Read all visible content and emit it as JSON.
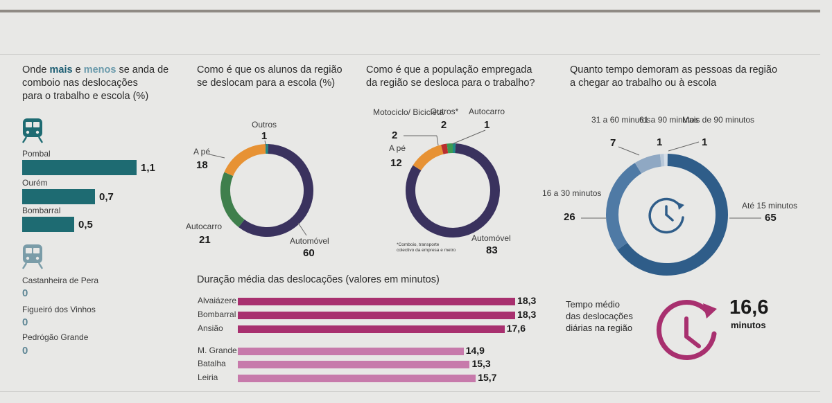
{
  "panel_rail": {
    "title_parts": [
      "Onde ",
      "mais",
      " e ",
      "menos",
      " se anda de",
      "comboio nas deslocações",
      "para o trabalho e escola (%)"
    ],
    "most": [
      {
        "label": "Pombal",
        "value": "1,1"
      },
      {
        "label": "Ourém",
        "value": "0,7"
      },
      {
        "label": "Bombarral",
        "value": "0,5"
      }
    ],
    "least": [
      {
        "label": "Castanheira de Pera",
        "value": "0"
      },
      {
        "label": "Figueiró dos Vinhos",
        "value": "0"
      },
      {
        "label": "Pedrógão Grande",
        "value": "0"
      }
    ],
    "icons": [
      "train-icon",
      "train-icon"
    ]
  },
  "panel_students": {
    "title_lines": [
      "Como é que os alunos da região",
      "se deslocam para a escola (%)"
    ]
  },
  "panel_workers": {
    "title_lines": [
      "Como é que a população empregada",
      "da região se desloca para o trabalho?"
    ],
    "footnote_lines": [
      "*Comboio, transporte",
      "colectivo da empresa e metro"
    ]
  },
  "panel_time": {
    "title_lines": [
      "Quanto tempo demoram as pessoas da região",
      "a chegar ao trabalho ou à escola"
    ]
  },
  "panel_avg": {
    "label_lines": [
      "Tempo médio",
      "das deslocações",
      "diárias na região"
    ],
    "value": "16,6",
    "unit": "minutos"
  },
  "panel_duration": {
    "title": "Duração média das deslocações (valores em minutos)"
  },
  "chart_data": [
    {
      "type": "bar",
      "orientation": "horizontal",
      "title": "Onde mais e menos se anda de comboio nas deslocações para o trabalho e escola (%)",
      "categories": [
        "Pombal",
        "Ourém",
        "Bombarral",
        "Castanheira de Pera",
        "Figueiró dos Vinhos",
        "Pedrógão Grande"
      ],
      "values": [
        1.1,
        0.7,
        0.5,
        0,
        0,
        0
      ],
      "value_labels": [
        "1,1",
        "0,7",
        "0,5",
        "0",
        "0",
        "0"
      ],
      "colors": {
        "bar": "#1e6b72",
        "zero": "#5e8695"
      }
    },
    {
      "type": "pie",
      "donut": true,
      "title": "Como é que os alunos da região se deslocam para a escola (%)",
      "slices": [
        {
          "label": "Outros",
          "value": 1,
          "color": "#1f8a84"
        },
        {
          "label": "Automóvel",
          "value": 60,
          "color": "#3a325e"
        },
        {
          "label": "Autocarro",
          "value": 21,
          "color": "#3f7f4c"
        },
        {
          "label": "A pé",
          "value": 18,
          "color": "#e79234"
        }
      ]
    },
    {
      "type": "pie",
      "donut": true,
      "title": "Como é que a população empregada da região se desloca para o trabalho?",
      "slices": [
        {
          "label": "Autocarro",
          "value": 1,
          "color": "#1f8a84"
        },
        {
          "label": "Automóvel",
          "value": 83,
          "color": "#3a325e"
        },
        {
          "label": "A pé",
          "value": 12,
          "color": "#e79234"
        },
        {
          "label": "Motociclo/ Bicicleta",
          "value": 2,
          "color": "#b92e2e"
        },
        {
          "label": "Outros*",
          "value": 2,
          "color": "#3c9a52"
        }
      ]
    },
    {
      "type": "pie",
      "donut": true,
      "title": "Quanto tempo demoram as pessoas da região a chegar ao trabalho ou à escola",
      "slices": [
        {
          "label": "Mais de 90 minutos",
          "value": 1,
          "color": "#d3dde7"
        },
        {
          "label": "Até 15 minutos",
          "value": 65,
          "color": "#2f5d89"
        },
        {
          "label": "16 a 30 minutos",
          "value": 26,
          "color": "#4f7aa5"
        },
        {
          "label": "31 a 60 minutos",
          "value": 7,
          "color": "#8fa8c3"
        },
        {
          "label": "61 a 90 minutos",
          "value": 1,
          "color": "#b7c7d8"
        }
      ],
      "icon": "clock-icon"
    },
    {
      "type": "bar",
      "orientation": "horizontal",
      "title": "Duração média das deslocações (valores em minutos)",
      "categories": [
        "Alvaiázere",
        "Bombarral",
        "Ansião",
        "M. Grande",
        "Batalha",
        "Leiria"
      ],
      "values": [
        18.3,
        18.3,
        17.6,
        14.9,
        15.3,
        15.7
      ],
      "value_labels": [
        "18,3",
        "18,3",
        "17,6",
        "14,9",
        "15,3",
        "15,7"
      ],
      "colors": [
        "#a8306f",
        "#a8306f",
        "#a8306f",
        "#c77aab",
        "#c77aab",
        "#c77aab"
      ]
    }
  ]
}
